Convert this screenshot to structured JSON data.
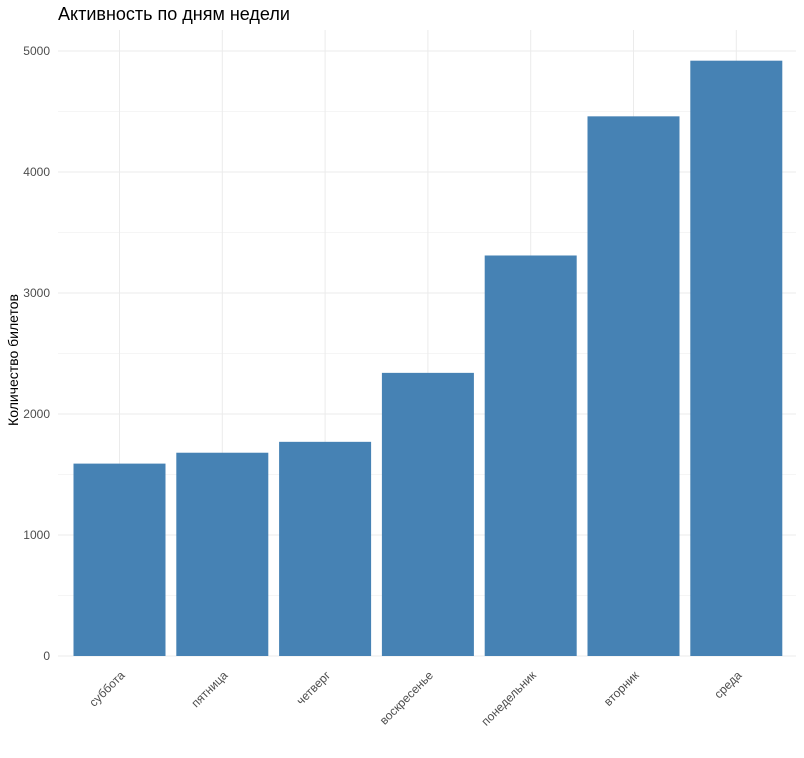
{
  "chart_data": {
    "type": "bar",
    "title": "Активность по дням недели",
    "xlabel": "",
    "ylabel": "Количество билетов",
    "categories": [
      "суббота",
      "пятница",
      "четверг",
      "воскресенье",
      "понедельник",
      "вторник",
      "среда"
    ],
    "values": [
      1590,
      1680,
      1770,
      2340,
      3310,
      4460,
      4920
    ],
    "ylim": [
      0,
      5000
    ],
    "yticks": [
      "0",
      "1000",
      "2000",
      "3000",
      "4000",
      "5000"
    ],
    "grid": true,
    "legend": "none",
    "bar_color": "#4682B4",
    "grid_color": "#EBEBEB"
  }
}
